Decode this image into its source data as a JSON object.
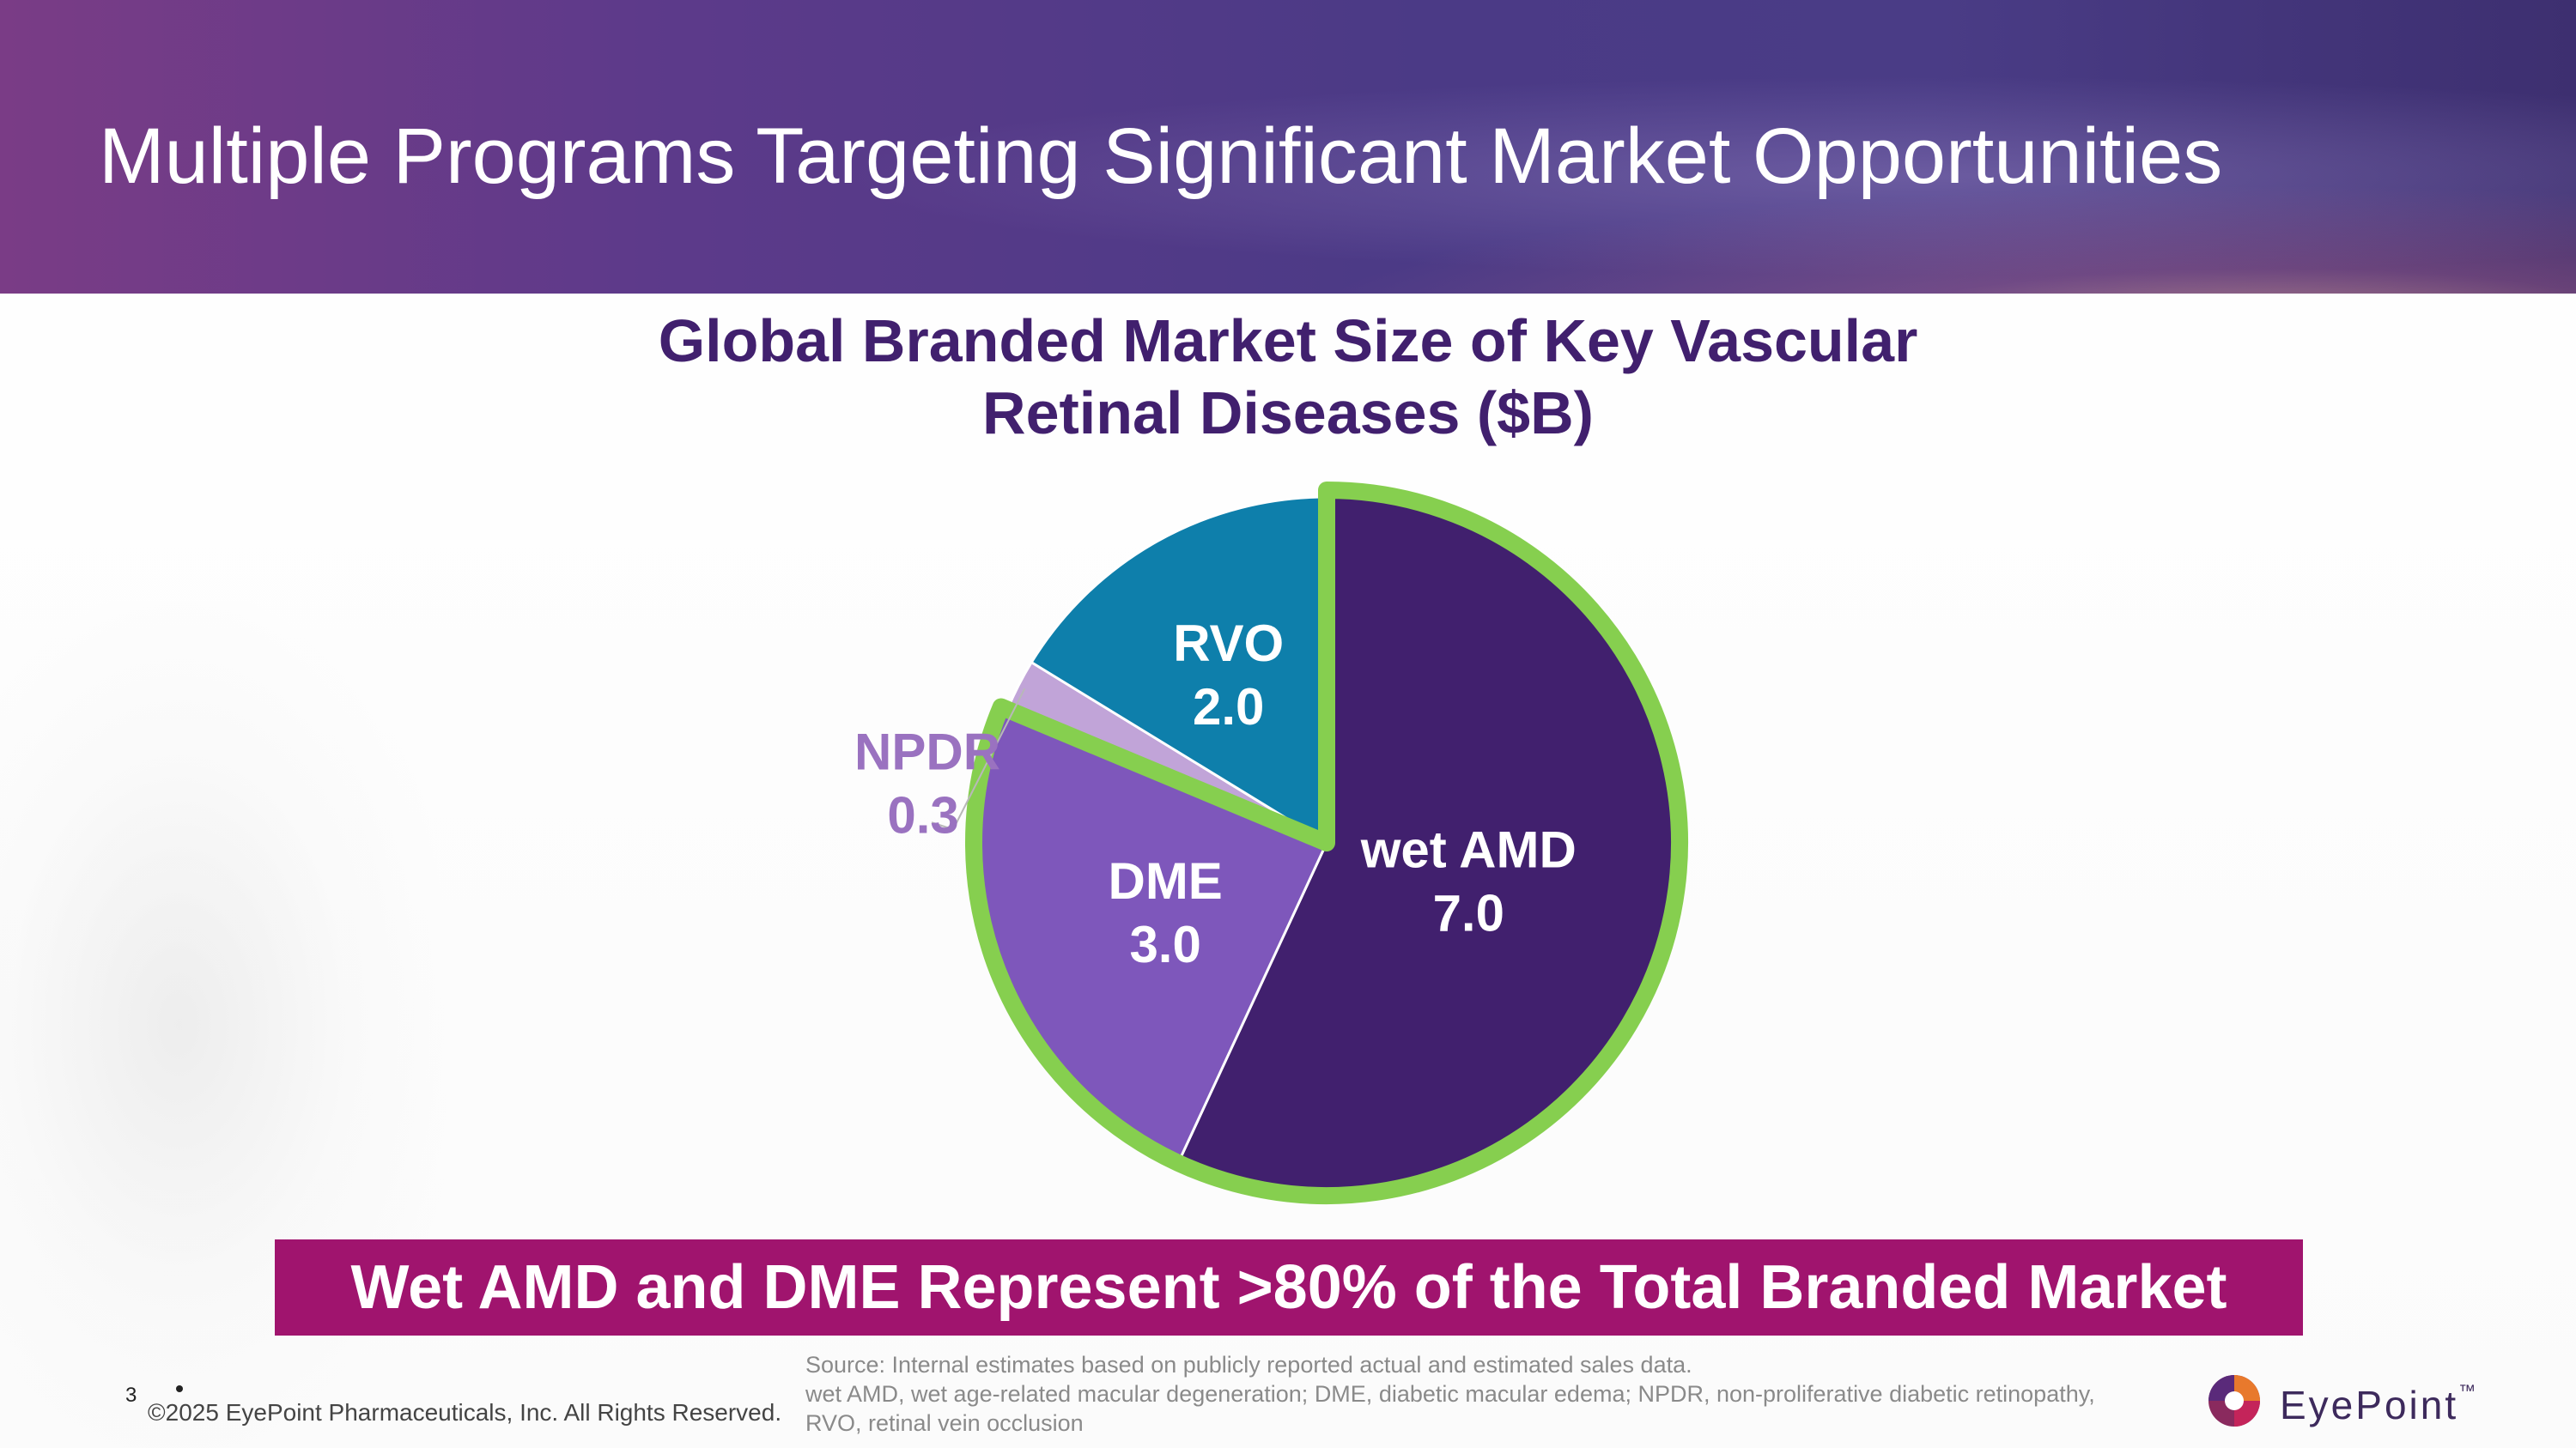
{
  "slide": {
    "title": "Multiple Programs Targeting Significant Market Opportunities",
    "chart_title_line1": "Global Branded Market Size of Key Vascular",
    "chart_title_line2": "Retinal Diseases  ($B)",
    "callout": "Wet AMD and DME Represent >80% of the Total Branded Market",
    "page_number": "3",
    "copyright": "©2025 EyePoint Pharmaceuticals, Inc. All Rights Reserved.",
    "source_line1": "Source: Internal estimates based on publicly reported actual and estimated sales data.",
    "source_line2": " wet AMD, wet age-related macular degeneration; DME, diabetic macular edema; NPDR, non-proliferative diabetic retinopathy,",
    "source_line3": "RVO, retinal vein occlusion",
    "logo_text": "EyePoint",
    "trademark": "™"
  },
  "colors": {
    "header": "#4b3a86",
    "title_text": "#41206e",
    "callout_bg": "#a0146e",
    "highlight_border": "#86cf4f"
  },
  "chart_data": {
    "type": "pie",
    "title": "Global Branded Market Size of Key Vascular Retinal Diseases  ($B)",
    "unit": "$B",
    "start": "12 o'clock, clockwise",
    "slices": [
      {
        "name": "wet AMD",
        "value": 7.0,
        "label": "7.0",
        "color": "#41206e",
        "label_color": "#ffffff",
        "highlighted": true,
        "label_position": "inside"
      },
      {
        "name": "DME",
        "value": 3.0,
        "label": "3.0",
        "color": "#7e57bb",
        "label_color": "#ffffff",
        "highlighted": true,
        "label_position": "inside"
      },
      {
        "name": "NPDR",
        "value": 0.3,
        "label": "0.3",
        "color": "#c1a4d8",
        "label_color": "#9a72c0",
        "highlighted": false,
        "label_position": "outside"
      },
      {
        "name": "RVO",
        "value": 2.0,
        "label": "2.0",
        "color": "#0e7fab",
        "label_color": "#ffffff",
        "highlighted": false,
        "label_position": "inside"
      }
    ],
    "highlight_note": "wet AMD and DME slices outlined in green"
  }
}
